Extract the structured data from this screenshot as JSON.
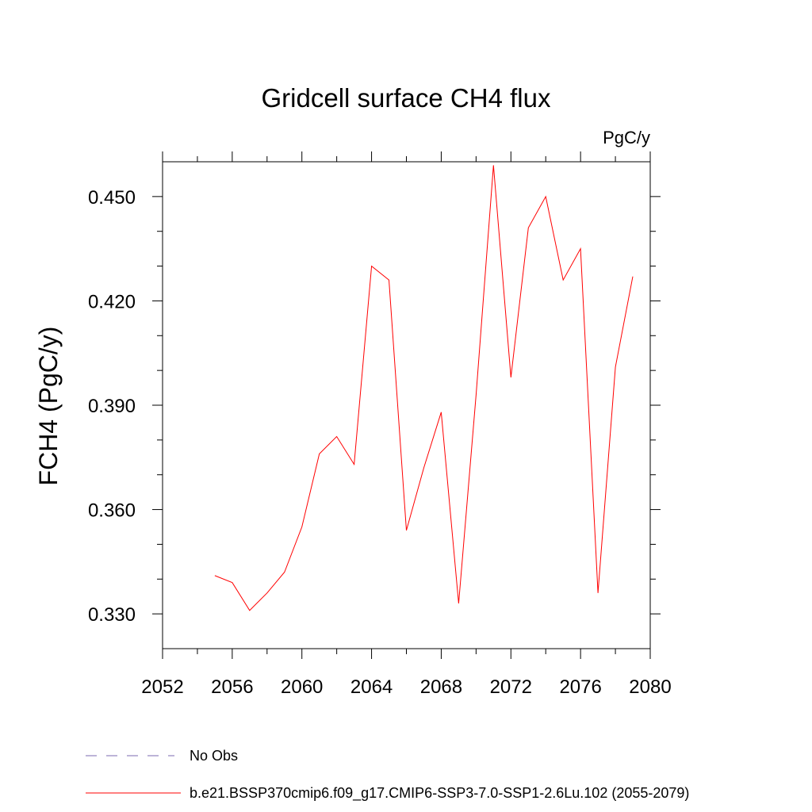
{
  "chart_data": {
    "type": "line",
    "title": "Gridcell surface CH4 flux",
    "units_label": "PgC/y",
    "xlabel": "",
    "ylabel": "FCH4  (PgC/y)",
    "xlim": [
      2052,
      2080
    ],
    "ylim": [
      0.32,
      0.46
    ],
    "x_ticks": [
      2052,
      2056,
      2060,
      2064,
      2068,
      2072,
      2076,
      2080
    ],
    "x_tick_labels": [
      "2052",
      "2056",
      "2060",
      "2064",
      "2068",
      "2072",
      "2076",
      "2080"
    ],
    "y_ticks": [
      0.33,
      0.36,
      0.39,
      0.42,
      0.45
    ],
    "y_tick_labels": [
      "0.330",
      "0.360",
      "0.390",
      "0.420",
      "0.450"
    ],
    "grid": false,
    "legend_position": "bottom",
    "series": [
      {
        "name": "b.e21.BSSP370cmip6.f09_g17.CMIP6-SSP3-7.0-SSP1-2.6Lu.102 (2055-2079)",
        "color": "#ff0000",
        "x": [
          2055,
          2056,
          2057,
          2058,
          2059,
          2060,
          2061,
          2062,
          2063,
          2064,
          2065,
          2066,
          2067,
          2068,
          2069,
          2070,
          2071,
          2072,
          2073,
          2074,
          2075,
          2076,
          2077,
          2078,
          2079
        ],
        "values": [
          0.341,
          0.339,
          0.331,
          0.336,
          0.342,
          0.355,
          0.376,
          0.381,
          0.373,
          0.43,
          0.426,
          0.354,
          0.372,
          0.388,
          0.333,
          0.393,
          0.459,
          0.398,
          0.441,
          0.45,
          0.426,
          0.435,
          0.336,
          0.401,
          0.427
        ]
      }
    ],
    "legend": [
      {
        "label": "No Obs",
        "color": "#7b68b0",
        "style": "dashed"
      },
      {
        "label": "b.e21.BSSP370cmip6.f09_g17.CMIP6-SSP3-7.0-SSP1-2.6Lu.102 (2055-2079)",
        "color": "#ff0000",
        "style": "solid"
      }
    ]
  }
}
